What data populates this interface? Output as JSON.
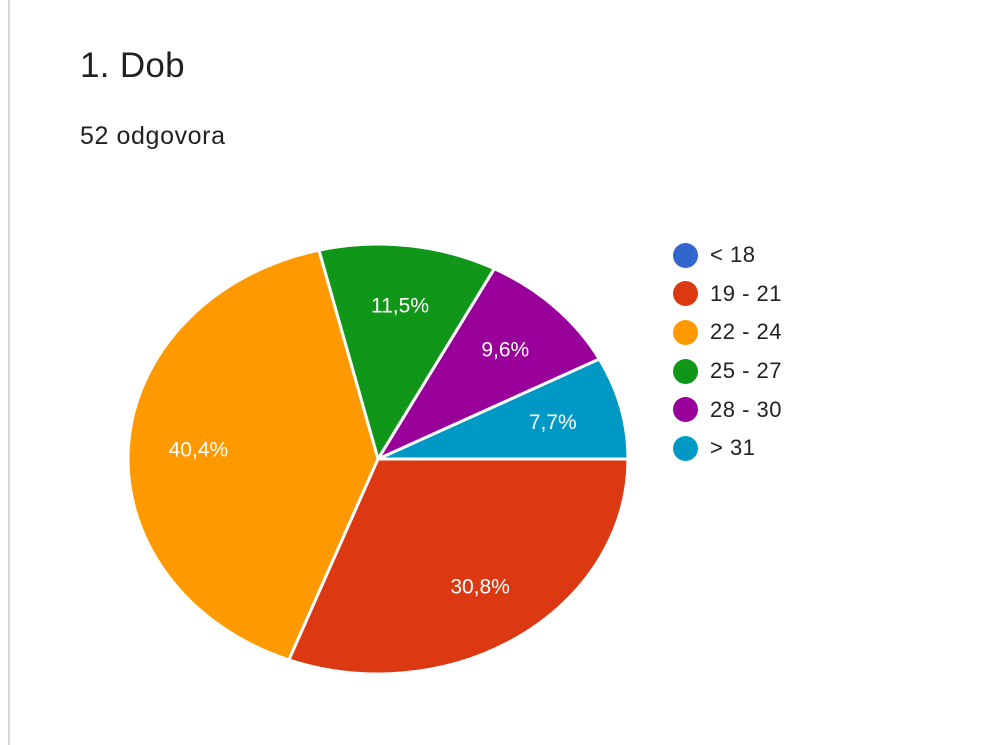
{
  "header": {
    "title": "1. Dob",
    "response_count": "52 odgovora"
  },
  "chart_data": {
    "type": "pie",
    "title": "1. Dob",
    "subtitle": "52 odgovora",
    "legend_position": "right",
    "categories": [
      "< 18",
      "19 - 21",
      "22 - 24",
      "25 - 27",
      "28 - 30",
      "> 31"
    ],
    "values": [
      0,
      30.8,
      40.4,
      11.5,
      9.6,
      7.7
    ],
    "data_labels": [
      "",
      "30,8%",
      "40,4%",
      "11,5%",
      "9,6%",
      "7,7%"
    ],
    "colors": [
      "#3366cc",
      "#dc3912",
      "#ff9900",
      "#109618",
      "#990099",
      "#0099c6"
    ]
  }
}
